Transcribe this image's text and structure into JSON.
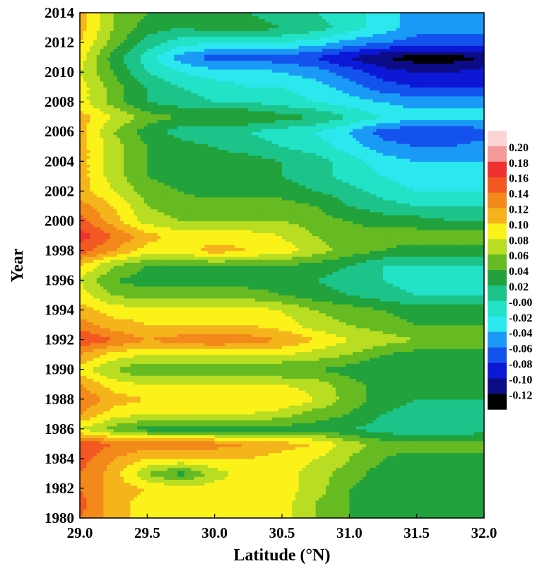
{
  "chart_data": {
    "type": "heatmap",
    "title": "",
    "xlabel": "Latitude (°N)",
    "ylabel": "Year",
    "xlim": [
      29.0,
      32.0
    ],
    "ylim": [
      1980,
      2014
    ],
    "x_ticks": [
      "29.0",
      "29.5",
      "30.0",
      "30.5",
      "31.0",
      "31.5",
      "32.0"
    ],
    "y_ticks": [
      "1980",
      "1982",
      "1984",
      "1986",
      "1988",
      "1990",
      "1992",
      "1994",
      "1996",
      "1998",
      "2000",
      "2002",
      "2004",
      "2006",
      "2008",
      "2010",
      "2012",
      "2014"
    ],
    "colorbar": {
      "levels": [
        0.22,
        0.2,
        0.18,
        0.16,
        0.14,
        0.12,
        0.1,
        0.08,
        0.06,
        0.04,
        0.02,
        -0.0,
        -0.02,
        -0.04,
        -0.06,
        -0.08,
        -0.1,
        -0.12
      ],
      "labels": [
        "",
        "0.20",
        "0.18",
        "0.16",
        "0.14",
        "0.12",
        "0.10",
        "0.08",
        "0.06",
        "0.04",
        "0.02",
        "-0.00",
        "-0.02",
        "-0.04",
        "-0.06",
        "-0.08",
        "-0.10",
        "-0.12"
      ],
      "colors": [
        "#fbd5d5",
        "#f39a9a",
        "#ee3030",
        "#f25822",
        "#f2891a",
        "#f5b41c",
        "#fbf21a",
        "#b8dd22",
        "#66bb22",
        "#22a23c",
        "#1cc48a",
        "#22e2c8",
        "#2ae8ee",
        "#1a9af6",
        "#1452ee",
        "#0c18d6",
        "#0c0c88",
        "#000000"
      ]
    },
    "x": [
      29.0,
      29.25,
      29.5,
      29.75,
      30.0,
      30.25,
      30.5,
      30.75,
      31.0,
      31.25,
      31.5,
      31.75,
      32.0
    ],
    "y": [
      1980,
      1981,
      1982,
      1983,
      1984,
      1985,
      1986,
      1987,
      1988,
      1989,
      1990,
      1991,
      1992,
      1993,
      1994,
      1995,
      1996,
      1997,
      1998,
      1999,
      2000,
      2001,
      2002,
      2003,
      2004,
      2005,
      2006,
      2007,
      2008,
      2009,
      2010,
      2011,
      2012,
      2013,
      2014
    ],
    "z": [
      [
        0.15,
        0.12,
        0.1,
        0.1,
        0.1,
        0.1,
        0.1,
        0.07,
        0.05,
        0.04,
        0.04,
        0.04,
        0.04
      ],
      [
        0.16,
        0.12,
        0.1,
        0.1,
        0.1,
        0.11,
        0.1,
        0.07,
        0.05,
        0.04,
        0.04,
        0.04,
        0.04
      ],
      [
        0.15,
        0.12,
        0.11,
        0.1,
        0.1,
        0.1,
        0.1,
        0.08,
        0.05,
        0.04,
        0.03,
        0.03,
        0.03
      ],
      [
        0.15,
        0.12,
        0.07,
        0.04,
        0.08,
        0.1,
        0.1,
        0.08,
        0.06,
        0.04,
        0.03,
        0.03,
        0.03
      ],
      [
        0.16,
        0.13,
        0.11,
        0.11,
        0.11,
        0.11,
        0.1,
        0.09,
        0.07,
        0.05,
        0.04,
        0.04,
        0.04
      ],
      [
        0.17,
        0.15,
        0.14,
        0.14,
        0.14,
        0.13,
        0.12,
        0.11,
        0.08,
        0.06,
        0.06,
        0.06,
        0.06
      ],
      [
        0.09,
        0.06,
        0.04,
        0.04,
        0.04,
        0.04,
        0.04,
        0.04,
        0.03,
        0.02,
        0.01,
        0.01,
        0.02
      ],
      [
        0.13,
        0.1,
        0.09,
        0.09,
        0.09,
        0.09,
        0.08,
        0.06,
        0.05,
        0.03,
        0.02,
        0.02,
        0.02
      ],
      [
        0.15,
        0.12,
        0.11,
        0.11,
        0.11,
        0.11,
        0.11,
        0.09,
        0.06,
        0.04,
        0.03,
        0.03,
        0.03
      ],
      [
        0.13,
        0.1,
        0.09,
        0.09,
        0.09,
        0.09,
        0.09,
        0.08,
        0.06,
        0.04,
        0.03,
        0.03,
        0.03
      ],
      [
        0.1,
        0.07,
        0.05,
        0.05,
        0.05,
        0.05,
        0.05,
        0.05,
        0.04,
        0.03,
        0.03,
        0.03,
        0.03
      ],
      [
        0.13,
        0.1,
        0.09,
        0.09,
        0.09,
        0.09,
        0.09,
        0.08,
        0.07,
        0.05,
        0.04,
        0.04,
        0.04
      ],
      [
        0.17,
        0.15,
        0.13,
        0.14,
        0.15,
        0.14,
        0.13,
        0.11,
        0.09,
        0.08,
        0.07,
        0.07,
        0.06
      ],
      [
        0.14,
        0.12,
        0.11,
        0.11,
        0.11,
        0.11,
        0.1,
        0.08,
        0.07,
        0.06,
        0.05,
        0.05,
        0.05
      ],
      [
        0.12,
        0.1,
        0.1,
        0.1,
        0.1,
        0.1,
        0.09,
        0.07,
        0.06,
        0.05,
        0.04,
        0.04,
        0.04
      ],
      [
        0.1,
        0.07,
        0.06,
        0.06,
        0.06,
        0.06,
        0.05,
        0.04,
        0.03,
        0.02,
        0.01,
        0.01,
        0.01
      ],
      [
        0.09,
        0.05,
        0.04,
        0.04,
        0.04,
        0.04,
        0.04,
        0.03,
        0.02,
        0.01,
        0.0,
        0.0,
        0.01
      ],
      [
        0.11,
        0.07,
        0.05,
        0.05,
        0.05,
        0.05,
        0.05,
        0.04,
        0.03,
        0.01,
        0.01,
        0.01,
        0.01
      ],
      [
        0.16,
        0.13,
        0.1,
        0.1,
        0.12,
        0.11,
        0.1,
        0.08,
        0.06,
        0.05,
        0.04,
        0.04,
        0.04
      ],
      [
        0.18,
        0.15,
        0.12,
        0.1,
        0.1,
        0.1,
        0.09,
        0.07,
        0.06,
        0.06,
        0.06,
        0.06,
        0.06
      ],
      [
        0.16,
        0.12,
        0.08,
        0.07,
        0.07,
        0.07,
        0.07,
        0.06,
        0.05,
        0.04,
        0.04,
        0.03,
        0.03
      ],
      [
        0.14,
        0.11,
        0.07,
        0.06,
        0.06,
        0.06,
        0.06,
        0.05,
        0.03,
        0.02,
        0.01,
        0.01,
        0.01
      ],
      [
        0.12,
        0.09,
        0.06,
        0.05,
        0.04,
        0.04,
        0.04,
        0.03,
        0.02,
        0.0,
        -0.01,
        -0.01,
        -0.01
      ],
      [
        0.12,
        0.08,
        0.05,
        0.04,
        0.04,
        0.03,
        0.03,
        0.02,
        0.0,
        -0.01,
        -0.02,
        -0.02,
        -0.02
      ],
      [
        0.12,
        0.08,
        0.05,
        0.04,
        0.04,
        0.04,
        0.03,
        0.02,
        0.0,
        -0.02,
        -0.03,
        -0.03,
        -0.03
      ],
      [
        0.12,
        0.08,
        0.05,
        0.04,
        0.03,
        0.02,
        0.01,
        0.0,
        -0.02,
        -0.04,
        -0.05,
        -0.05,
        -0.04
      ],
      [
        0.12,
        0.07,
        0.04,
        0.02,
        0.01,
        0.01,
        0.0,
        -0.01,
        -0.03,
        -0.06,
        -0.07,
        -0.07,
        -0.06
      ],
      [
        0.12,
        0.09,
        0.06,
        0.05,
        0.05,
        0.05,
        0.04,
        0.03,
        0.01,
        -0.01,
        -0.02,
        -0.02,
        -0.02
      ],
      [
        0.1,
        0.06,
        0.03,
        0.02,
        0.01,
        0.01,
        0.0,
        -0.01,
        -0.02,
        -0.03,
        -0.04,
        -0.04,
        -0.04
      ],
      [
        0.1,
        0.06,
        0.03,
        0.01,
        0.0,
        -0.01,
        -0.01,
        -0.02,
        -0.04,
        -0.06,
        -0.07,
        -0.07,
        -0.07
      ],
      [
        0.09,
        0.05,
        0.01,
        -0.01,
        -0.02,
        -0.02,
        -0.03,
        -0.04,
        -0.06,
        -0.08,
        -0.09,
        -0.09,
        -0.08
      ],
      [
        0.1,
        0.04,
        0.0,
        -0.04,
        -0.06,
        -0.06,
        -0.06,
        -0.07,
        -0.09,
        -0.11,
        -0.12,
        -0.12,
        -0.11
      ],
      [
        0.11,
        0.06,
        0.02,
        0.0,
        -0.01,
        -0.01,
        -0.01,
        -0.02,
        -0.04,
        -0.05,
        -0.06,
        -0.06,
        -0.06
      ],
      [
        0.12,
        0.07,
        0.04,
        0.03,
        0.04,
        0.04,
        0.03,
        0.02,
        0.0,
        -0.02,
        -0.04,
        -0.04,
        -0.04
      ],
      [
        0.12,
        0.07,
        0.05,
        0.04,
        0.03,
        0.03,
        0.02,
        0.01,
        0.0,
        -0.02,
        -0.04,
        -0.05,
        -0.05
      ]
    ]
  }
}
